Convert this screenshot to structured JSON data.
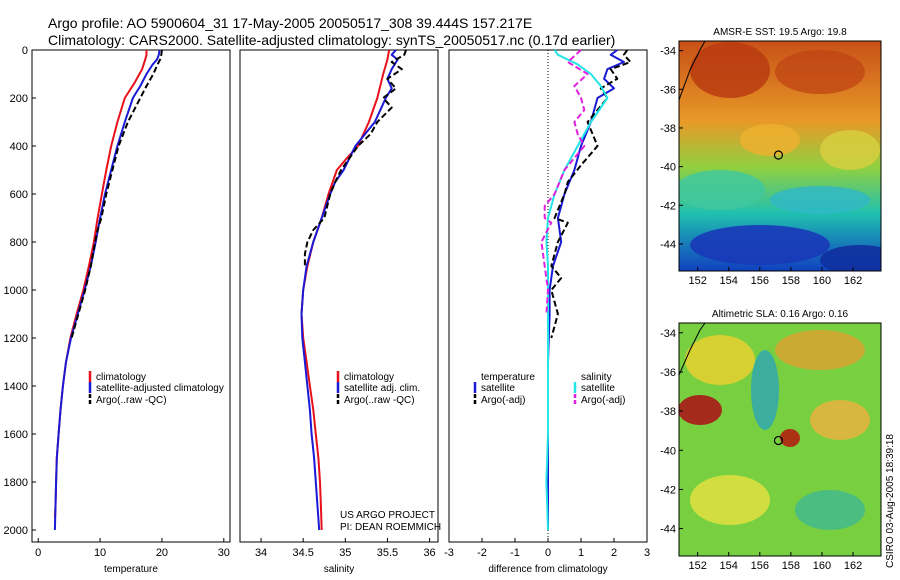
{
  "title": {
    "line1": "Argo profile: AO 5900604_31 17-May-2005 20050517_308 39.444S 157.217E",
    "line2": "Climatology: CARS2000. Satellite-adjusted climatology: synTS_20050517.nc (0.17d earlier)"
  },
  "credits": {
    "project": "US ARGO PROJECT",
    "pi": "PI: DEAN ROEMMICH"
  },
  "side_stamp": "CSIRO 03-Aug-2005 18:39:18",
  "colors": {
    "red": "#e8101a",
    "blue": "#1a1ad6",
    "black": "#000000",
    "cyan": "#22e6e6",
    "magenta": "#e020e0"
  },
  "chart_data": [
    {
      "type": "line",
      "id": "temperature",
      "xlabel": "temperature",
      "xlim": [
        -1,
        31
      ],
      "ylim": [
        2050,
        0
      ],
      "xticks": [
        0,
        10,
        20,
        30
      ],
      "yticks": [
        0,
        200,
        400,
        600,
        800,
        1000,
        1200,
        1400,
        1600,
        1800,
        2000
      ],
      "legend": [
        "climatology",
        "satellite-adjusted climatology",
        "Argo(..raw -QC)"
      ],
      "series": [
        {
          "name": "climatology",
          "color": "red",
          "dash": false,
          "points": [
            [
              17.5,
              0
            ],
            [
              17.5,
              20
            ],
            [
              17.3,
              40
            ],
            [
              16.8,
              80
            ],
            [
              15.5,
              140
            ],
            [
              14.0,
              200
            ],
            [
              12.8,
              300
            ],
            [
              11.8,
              400
            ],
            [
              11.0,
              500
            ],
            [
              10.3,
              600
            ],
            [
              9.6,
              700
            ],
            [
              9.0,
              800
            ],
            [
              8.2,
              900
            ],
            [
              7.3,
              1000
            ],
            [
              6.2,
              1100
            ],
            [
              5.2,
              1200
            ],
            [
              4.5,
              1300
            ],
            [
              4.0,
              1400
            ],
            [
              3.6,
              1500
            ],
            [
              3.3,
              1600
            ],
            [
              3.0,
              1700
            ],
            [
              2.9,
              1800
            ],
            [
              2.8,
              1900
            ],
            [
              2.7,
              1950
            ]
          ]
        },
        {
          "name": "satellite-adjusted climatology",
          "color": "blue",
          "dash": false,
          "points": [
            [
              19.6,
              0
            ],
            [
              19.5,
              20
            ],
            [
              19.2,
              40
            ],
            [
              18.5,
              60
            ],
            [
              17.5,
              100
            ],
            [
              16.5,
              150
            ],
            [
              15.3,
              200
            ],
            [
              14.0,
              300
            ],
            [
              12.8,
              400
            ],
            [
              11.8,
              500
            ],
            [
              10.8,
              600
            ],
            [
              10.0,
              700
            ],
            [
              9.3,
              800
            ],
            [
              8.5,
              900
            ],
            [
              7.5,
              1000
            ],
            [
              6.4,
              1100
            ],
            [
              5.3,
              1200
            ],
            [
              4.5,
              1300
            ],
            [
              4.0,
              1400
            ],
            [
              3.6,
              1500
            ],
            [
              3.3,
              1600
            ],
            [
              3.0,
              1700
            ],
            [
              2.9,
              1800
            ],
            [
              2.8,
              1900
            ],
            [
              2.7,
              2000
            ]
          ]
        },
        {
          "name": "Argo(..raw -QC)",
          "color": "black",
          "dash": true,
          "points": [
            [
              20.0,
              0
            ],
            [
              19.9,
              20
            ],
            [
              19.7,
              40
            ],
            [
              19.3,
              60
            ],
            [
              18.6,
              100
            ],
            [
              17.5,
              150
            ],
            [
              16.5,
              200
            ],
            [
              14.5,
              300
            ],
            [
              13.0,
              400
            ],
            [
              12.0,
              500
            ],
            [
              11.0,
              600
            ],
            [
              10.2,
              700
            ],
            [
              9.6,
              750
            ],
            [
              9.2,
              800
            ],
            [
              8.5,
              900
            ],
            [
              7.6,
              1000
            ],
            [
              6.5,
              1100
            ],
            [
              5.4,
              1200
            ]
          ]
        }
      ]
    },
    {
      "type": "line",
      "id": "salinity",
      "xlabel": "salinity",
      "xlim": [
        33.75,
        36.1
      ],
      "ylim": [
        2050,
        0
      ],
      "xticks": [
        34,
        34.5,
        35,
        35.5,
        36
      ],
      "yticks": [],
      "legend": [
        "climatology",
        "satellite adj. clim.",
        "Argo(..raw -QC)"
      ],
      "series": [
        {
          "name": "climatology",
          "color": "red",
          "dash": false,
          "points": [
            [
              35.52,
              0
            ],
            [
              35.5,
              40
            ],
            [
              35.45,
              100
            ],
            [
              35.38,
              200
            ],
            [
              35.28,
              300
            ],
            [
              35.15,
              400
            ],
            [
              35.02,
              450
            ],
            [
              34.9,
              500
            ],
            [
              34.85,
              550
            ],
            [
              34.8,
              600
            ],
            [
              34.72,
              700
            ],
            [
              34.62,
              800
            ],
            [
              34.55,
              900
            ],
            [
              34.5,
              1000
            ],
            [
              34.48,
              1100
            ],
            [
              34.5,
              1200
            ],
            [
              34.54,
              1300
            ],
            [
              34.58,
              1400
            ],
            [
              34.62,
              1500
            ],
            [
              34.65,
              1600
            ],
            [
              34.68,
              1700
            ],
            [
              34.7,
              1800
            ],
            [
              34.71,
              1900
            ],
            [
              34.72,
              2000
            ]
          ]
        },
        {
          "name": "satellite adj. clim.",
          "color": "blue",
          "dash": false,
          "points": [
            [
              35.6,
              0
            ],
            [
              35.55,
              20
            ],
            [
              35.62,
              40
            ],
            [
              35.55,
              80
            ],
            [
              35.5,
              120
            ],
            [
              35.55,
              160
            ],
            [
              35.48,
              200
            ],
            [
              35.35,
              300
            ],
            [
              35.12,
              400
            ],
            [
              34.98,
              500
            ],
            [
              34.88,
              550
            ],
            [
              34.82,
              600
            ],
            [
              34.72,
              700
            ],
            [
              34.62,
              800
            ],
            [
              34.54,
              900
            ],
            [
              34.5,
              1000
            ],
            [
              34.48,
              1100
            ],
            [
              34.49,
              1200
            ],
            [
              34.52,
              1300
            ],
            [
              34.55,
              1400
            ],
            [
              34.58,
              1500
            ],
            [
              34.6,
              1600
            ],
            [
              34.63,
              1700
            ],
            [
              34.65,
              1800
            ],
            [
              34.67,
              1900
            ],
            [
              34.69,
              2000
            ]
          ]
        },
        {
          "name": "Argo(..raw -QC)",
          "color": "black",
          "dash": true,
          "points": [
            [
              35.72,
              0
            ],
            [
              35.7,
              20
            ],
            [
              35.55,
              50
            ],
            [
              35.67,
              80
            ],
            [
              35.5,
              120
            ],
            [
              35.6,
              160
            ],
            [
              35.45,
              200
            ],
            [
              35.55,
              240
            ],
            [
              35.38,
              300
            ],
            [
              35.3,
              350
            ],
            [
              35.15,
              400
            ],
            [
              35.05,
              450
            ],
            [
              34.95,
              500
            ],
            [
              34.88,
              550
            ],
            [
              34.82,
              600
            ],
            [
              34.75,
              700
            ],
            [
              34.62,
              750
            ],
            [
              34.55,
              800
            ],
            [
              34.52,
              850
            ],
            [
              34.52,
              900
            ]
          ]
        }
      ]
    },
    {
      "type": "line",
      "id": "difference",
      "xlabel": "difference from climatology",
      "xlim": [
        -3,
        3
      ],
      "ylim": [
        2050,
        0
      ],
      "xticks": [
        -3,
        -2,
        -1,
        0,
        1,
        2,
        3
      ],
      "yticks": [],
      "legend_left_title": "temperature",
      "legend_left": [
        "satellite",
        "Argo(-adj)"
      ],
      "legend_right_title": "salinity",
      "legend_right": [
        "satellite",
        "Argo(-adj)"
      ],
      "series": [
        {
          "name": "temperature satellite",
          "color": "blue",
          "dash": false,
          "points": [
            [
              2.1,
              0
            ],
            [
              1.9,
              20
            ],
            [
              2.3,
              50
            ],
            [
              1.8,
              80
            ],
            [
              1.7,
              120
            ],
            [
              2.0,
              160
            ],
            [
              1.5,
              200
            ],
            [
              1.3,
              300
            ],
            [
              1.0,
              400
            ],
            [
              0.8,
              500
            ],
            [
              0.5,
              600
            ],
            [
              0.3,
              700
            ],
            [
              0.4,
              800
            ],
            [
              0.15,
              900
            ],
            [
              0.05,
              1000
            ],
            [
              0.05,
              1100
            ],
            [
              0,
              1300
            ],
            [
              0,
              2000
            ]
          ]
        },
        {
          "name": "temperature Argo(-adj)",
          "color": "black",
          "dash": true,
          "points": [
            [
              2.4,
              0
            ],
            [
              2.3,
              20
            ],
            [
              2.5,
              50
            ],
            [
              1.9,
              80
            ],
            [
              2.1,
              120
            ],
            [
              1.6,
              160
            ],
            [
              1.8,
              200
            ],
            [
              1.2,
              300
            ],
            [
              1.5,
              400
            ],
            [
              1.0,
              480
            ],
            [
              0.6,
              550
            ],
            [
              0.5,
              600
            ],
            [
              0.2,
              700
            ],
            [
              0.6,
              720
            ],
            [
              0.3,
              800
            ],
            [
              0.1,
              900
            ],
            [
              0.4,
              950
            ],
            [
              0.1,
              1000
            ],
            [
              0.3,
              1100
            ],
            [
              0.1,
              1200
            ]
          ]
        },
        {
          "name": "salinity satellite",
          "color": "cyan",
          "dash": false,
          "points": [
            [
              0.2,
              0
            ],
            [
              0.3,
              20
            ],
            [
              0.9,
              60
            ],
            [
              1.3,
              100
            ],
            [
              1.6,
              150
            ],
            [
              1.8,
              200
            ],
            [
              1.3,
              300
            ],
            [
              0.9,
              400
            ],
            [
              0.5,
              500
            ],
            [
              0.2,
              600
            ],
            [
              0,
              700
            ],
            [
              -0.05,
              800
            ],
            [
              0,
              900
            ],
            [
              0,
              1000
            ],
            [
              0,
              1300
            ],
            [
              0,
              1600
            ],
            [
              -0.05,
              1800
            ],
            [
              0,
              2000
            ]
          ]
        },
        {
          "name": "salinity Argo(-adj)",
          "color": "magenta",
          "dash": true,
          "points": [
            [
              1.0,
              0
            ],
            [
              0.6,
              50
            ],
            [
              1.2,
              100
            ],
            [
              0.8,
              150
            ],
            [
              1.0,
              200
            ],
            [
              1.1,
              250
            ],
            [
              0.8,
              300
            ],
            [
              0.9,
              350
            ],
            [
              1.1,
              400
            ],
            [
              0.5,
              500
            ],
            [
              0.2,
              600
            ],
            [
              -0.1,
              650
            ],
            [
              -0.1,
              700
            ],
            [
              0.1,
              720
            ],
            [
              -0.2,
              800
            ],
            [
              -0.1,
              900
            ],
            [
              0,
              1000
            ],
            [
              -0.05,
              1100
            ]
          ]
        }
      ]
    },
    {
      "type": "heatmap",
      "id": "sst-map",
      "title": "AMSR-E SST: 19.5 Argo: 19.8",
      "xticks": [
        152,
        154,
        156,
        158,
        160,
        162
      ],
      "yticks": [
        -34,
        -36,
        -38,
        -40,
        -42,
        -44
      ],
      "xlim": [
        150.8,
        163.8
      ],
      "ylim": [
        -45.4,
        -33.5
      ],
      "float_position": [
        157.2,
        -39.4
      ]
    },
    {
      "type": "heatmap",
      "id": "sla-map",
      "title": "Altimetric SLA: 0.16 Argo: 0.16",
      "xticks": [
        152,
        154,
        156,
        158,
        160,
        162
      ],
      "yticks": [
        -34,
        -36,
        -38,
        -40,
        -42,
        -44
      ],
      "xlim": [
        150.8,
        163.8
      ],
      "ylim": [
        -45.4,
        -33.5
      ],
      "float_position": [
        157.2,
        -39.5
      ]
    }
  ]
}
